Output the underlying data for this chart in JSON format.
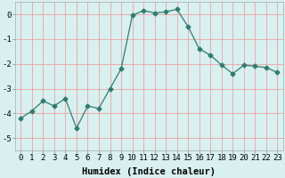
{
  "x": [
    0,
    1,
    2,
    3,
    4,
    5,
    6,
    7,
    8,
    9,
    10,
    11,
    12,
    13,
    14,
    15,
    16,
    17,
    18,
    19,
    20,
    21,
    22,
    23
  ],
  "y": [
    -4.2,
    -3.9,
    -3.5,
    -3.7,
    -3.4,
    -4.6,
    -3.7,
    -3.8,
    -3.0,
    -2.2,
    -0.05,
    0.15,
    0.05,
    0.1,
    0.2,
    -0.5,
    -1.4,
    -1.65,
    -2.05,
    -2.4,
    -2.05,
    -2.1,
    -2.15,
    -2.35
  ],
  "line_color": "#2e7d6e",
  "marker": "D",
  "marker_size": 2.5,
  "bg_color": "#d8f0f0",
  "grid_color": "#f0a0a0",
  "xlabel": "Humidex (Indice chaleur)",
  "xlabel_fontsize": 7.5,
  "ylim": [
    -5.5,
    0.5
  ],
  "xlim": [
    -0.5,
    23.5
  ],
  "yticks": [
    0,
    -1,
    -2,
    -3,
    -4,
    -5
  ],
  "xticks": [
    0,
    1,
    2,
    3,
    4,
    5,
    6,
    7,
    8,
    9,
    10,
    11,
    12,
    13,
    14,
    15,
    16,
    17,
    18,
    19,
    20,
    21,
    22,
    23
  ],
  "tick_fontsize": 6.5,
  "fig_width": 3.2,
  "fig_height": 2.0,
  "dpi": 100
}
